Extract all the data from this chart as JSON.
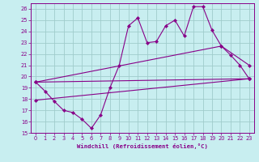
{
  "xlabel": "Windchill (Refroidissement éolien,°C)",
  "bg_color": "#c8eef0",
  "grid_color": "#a0cccc",
  "line_color": "#880088",
  "xlim": [
    -0.5,
    23.5
  ],
  "ylim": [
    15,
    26.5
  ],
  "yticks": [
    15,
    16,
    17,
    18,
    19,
    20,
    21,
    22,
    23,
    24,
    25,
    26
  ],
  "xticks": [
    0,
    1,
    2,
    3,
    4,
    5,
    6,
    7,
    8,
    9,
    10,
    11,
    12,
    13,
    14,
    15,
    16,
    17,
    18,
    19,
    20,
    21,
    22,
    23
  ],
  "line1_x": [
    0,
    1,
    2,
    3,
    4,
    5,
    6,
    7,
    8,
    9,
    10,
    11,
    12,
    13,
    14,
    15,
    16,
    17,
    18,
    19,
    20,
    21,
    22,
    23
  ],
  "line1_y": [
    19.5,
    18.7,
    17.8,
    17.0,
    16.8,
    16.2,
    15.4,
    16.6,
    19.0,
    21.0,
    24.5,
    25.2,
    23.0,
    23.1,
    24.5,
    25.0,
    23.6,
    26.2,
    26.2,
    24.1,
    22.7,
    21.9,
    21.0,
    19.8
  ],
  "line2_x": [
    0,
    23
  ],
  "line2_y": [
    19.5,
    19.8
  ],
  "line3_x": [
    0,
    23
  ],
  "line3_y": [
    17.9,
    19.8
  ],
  "line4_x": [
    0,
    20,
    23
  ],
  "line4_y": [
    19.5,
    22.7,
    21.0
  ]
}
